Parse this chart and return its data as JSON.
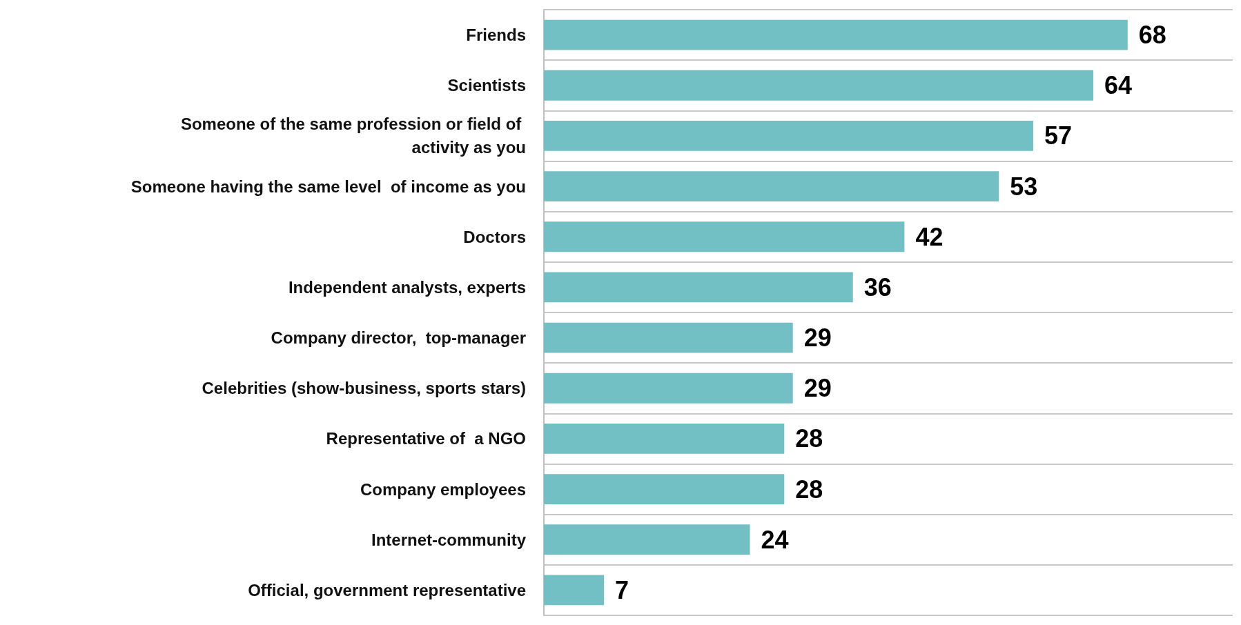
{
  "chart_data": {
    "type": "bar",
    "orientation": "horizontal",
    "categories": [
      "Friends",
      "Scientists",
      "Someone of the same profession or field of activity as you",
      "Someone having the same level  of income as you",
      "Doctors",
      "Independent analysts, experts",
      "Company director,  top-manager",
      "Celebrities (show-business, sports stars)",
      "Representative of  a NGO",
      "Company employees",
      "Internet-community",
      "Official, government representative"
    ],
    "values": [
      68,
      64,
      57,
      53,
      42,
      36,
      29,
      29,
      28,
      28,
      24,
      7
    ],
    "color": "#72bfc4",
    "data_labels": true,
    "grid": "y"
  }
}
